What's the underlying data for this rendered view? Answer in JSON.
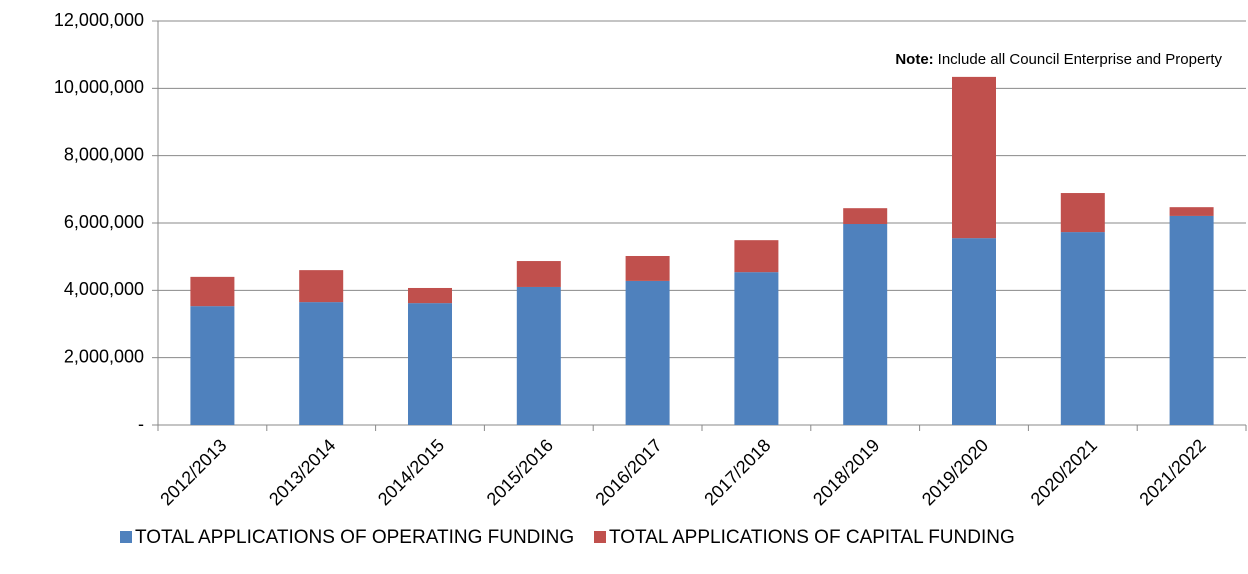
{
  "chart_data": {
    "type": "stacked_bar",
    "categories": [
      "2012/2013",
      "2013/2014",
      "2014/2015",
      "2015/2016",
      "2016/2017",
      "2017/2018",
      "2018/2019",
      "2019/2020",
      "2020/2021",
      "2021/2022"
    ],
    "series": [
      {
        "name": "TOTAL APPLICATIONS OF OPERATING FUNDING",
        "color": "#4f81bd",
        "values": [
          3530000,
          3650000,
          3620000,
          4100000,
          4280000,
          4540000,
          5970000,
          5550000,
          5730000,
          6210000
        ]
      },
      {
        "name": "TOTAL APPLICATIONS OF CAPITAL FUNDING",
        "color": "#c0504d",
        "values": [
          870000,
          950000,
          450000,
          770000,
          740000,
          950000,
          470000,
          4790000,
          1160000,
          260000
        ]
      }
    ],
    "ylim": [
      0,
      12000000
    ],
    "yticks": [
      {
        "value": 0,
        "label": "-"
      },
      {
        "value": 2000000,
        "label": "2,000,000"
      },
      {
        "value": 4000000,
        "label": "4,000,000"
      },
      {
        "value": 6000000,
        "label": "6,000,000"
      },
      {
        "value": 8000000,
        "label": "8,000,000"
      },
      {
        "value": 10000000,
        "label": "10,000,000"
      },
      {
        "value": 12000000,
        "label": "12,000,000"
      }
    ],
    "grid": true,
    "annotation": {
      "label": "Note:",
      "text": "Include all Council Enterprise and Property"
    },
    "legend": "bottom"
  }
}
